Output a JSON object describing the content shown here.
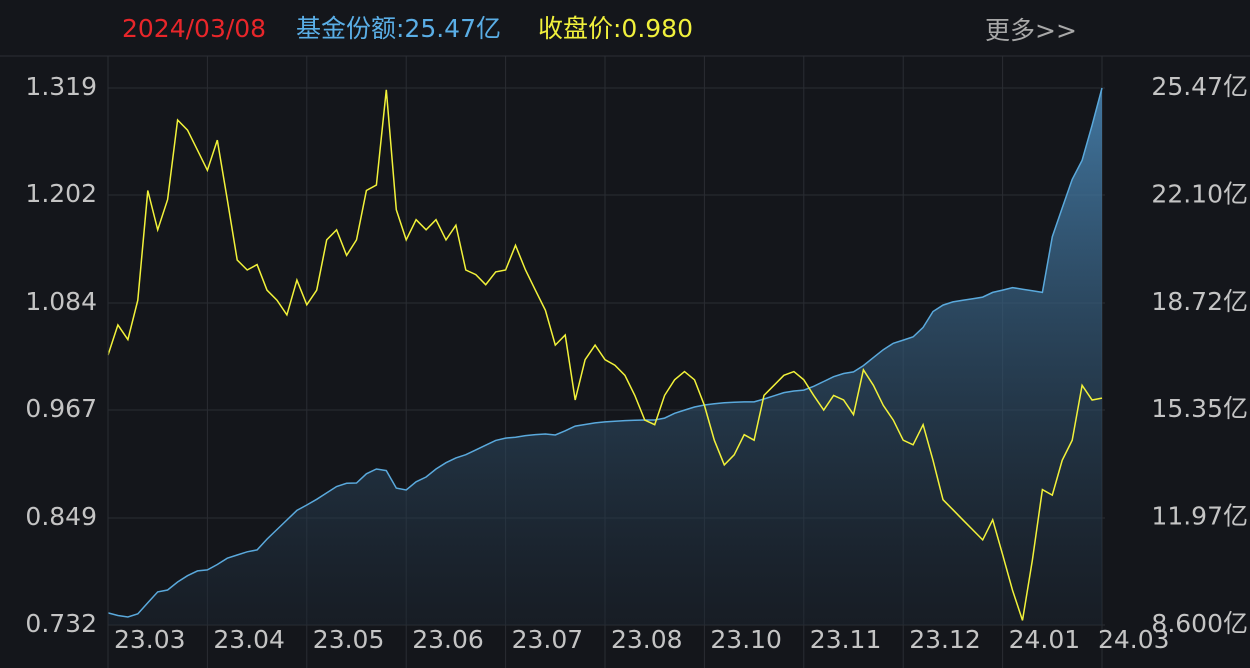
{
  "header": {
    "date": "2024/03/08",
    "share": "基金份额:25.47亿",
    "price": "收盘价:0.980",
    "more": "更多>>"
  },
  "chart_data": {
    "type": "line",
    "grid": true,
    "categories": [
      "23.03",
      null,
      null,
      null,
      null,
      null,
      null,
      null,
      null,
      null,
      "23.04",
      null,
      null,
      null,
      null,
      null,
      null,
      null,
      null,
      null,
      "23.05",
      null,
      null,
      null,
      null,
      null,
      null,
      null,
      null,
      null,
      "23.06",
      null,
      null,
      null,
      null,
      null,
      null,
      null,
      null,
      null,
      "23.07",
      null,
      null,
      null,
      null,
      null,
      null,
      null,
      null,
      null,
      "23.08",
      null,
      null,
      null,
      null,
      null,
      null,
      null,
      null,
      null,
      "23.10",
      null,
      null,
      null,
      null,
      null,
      null,
      null,
      null,
      null,
      "23.11",
      null,
      null,
      null,
      null,
      null,
      null,
      null,
      null,
      null,
      "23.12",
      null,
      null,
      null,
      null,
      null,
      null,
      null,
      null,
      null,
      "24.01",
      null,
      null,
      null,
      null,
      null,
      null,
      null,
      null,
      null,
      "24.03"
    ],
    "ylim": [
      0.732,
      1.319
    ],
    "yticks": [
      0.732,
      0.849,
      0.967,
      1.084,
      1.202,
      1.319
    ],
    "y2lim": [
      8.6,
      25.47
    ],
    "y2ticks": [
      {
        "value": 8.6,
        "label": "8.600亿"
      },
      {
        "value": 11.97,
        "label": "11.97亿"
      },
      {
        "value": 15.35,
        "label": "15.35亿"
      },
      {
        "value": 18.72,
        "label": "18.72亿"
      },
      {
        "value": 22.1,
        "label": "22.10亿"
      },
      {
        "value": 25.47,
        "label": "25.47亿"
      }
    ],
    "series": [
      {
        "axis": "y2",
        "color": "#5aa9dc",
        "area": true,
        "values": [
          8.98,
          8.9,
          8.85,
          8.95,
          9.3,
          9.64,
          9.7,
          9.95,
          10.15,
          10.3,
          10.33,
          10.5,
          10.7,
          10.8,
          10.9,
          10.96,
          11.3,
          11.6,
          11.9,
          12.2,
          12.37,
          12.55,
          12.75,
          12.95,
          13.05,
          13.06,
          13.35,
          13.5,
          13.45,
          12.9,
          12.84,
          13.1,
          13.25,
          13.5,
          13.7,
          13.85,
          13.95,
          14.1,
          14.25,
          14.4,
          14.47,
          14.5,
          14.55,
          14.58,
          14.6,
          14.57,
          14.7,
          14.85,
          14.9,
          14.95,
          14.98,
          15.0,
          15.02,
          15.03,
          15.04,
          15.04,
          15.1,
          15.25,
          15.35,
          15.45,
          15.51,
          15.55,
          15.58,
          15.6,
          15.61,
          15.61,
          15.7,
          15.8,
          15.9,
          15.95,
          15.98,
          16.1,
          16.25,
          16.4,
          16.5,
          16.55,
          16.75,
          17.0,
          17.25,
          17.45,
          17.55,
          17.65,
          17.95,
          18.45,
          18.65,
          18.75,
          18.8,
          18.85,
          18.9,
          19.05,
          19.12,
          19.2,
          19.15,
          19.1,
          19.05,
          20.8,
          21.7,
          22.6,
          23.2,
          24.3,
          25.47
        ]
      },
      {
        "color": "#f2f23a",
        "values": [
          1.027,
          1.06,
          1.044,
          1.087,
          1.207,
          1.164,
          1.197,
          1.284,
          1.273,
          1.251,
          1.229,
          1.262,
          1.197,
          1.131,
          1.12,
          1.126,
          1.098,
          1.087,
          1.071,
          1.109,
          1.082,
          1.098,
          1.153,
          1.164,
          1.136,
          1.153,
          1.207,
          1.213,
          1.317,
          1.186,
          1.153,
          1.175,
          1.164,
          1.175,
          1.153,
          1.169,
          1.12,
          1.115,
          1.104,
          1.118,
          1.12,
          1.147,
          1.12,
          1.098,
          1.076,
          1.038,
          1.049,
          0.978,
          1.022,
          1.038,
          1.022,
          1.016,
          1.005,
          0.983,
          0.956,
          0.951,
          0.983,
          1.0,
          1.009,
          1.0,
          0.972,
          0.934,
          0.907,
          0.918,
          0.94,
          0.934,
          0.983,
          0.994,
          1.005,
          1.009,
          1.0,
          0.983,
          0.967,
          0.983,
          0.978,
          0.962,
          1.011,
          0.994,
          0.972,
          0.956,
          0.934,
          0.929,
          0.951,
          0.912,
          0.869,
          0.858,
          0.847,
          0.836,
          0.825,
          0.847,
          0.809,
          0.77,
          0.737,
          0.803,
          0.88,
          0.874,
          0.912,
          0.934,
          0.994,
          0.978,
          0.98
        ]
      }
    ]
  }
}
